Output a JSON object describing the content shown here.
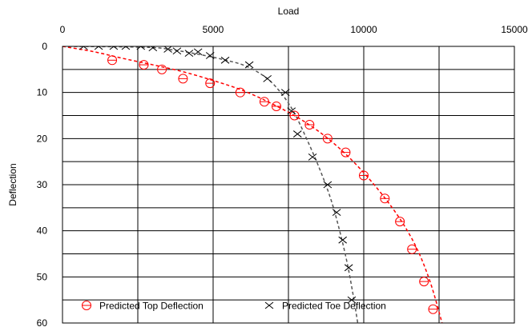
{
  "chart_data": {
    "type": "scatter",
    "title": "",
    "xlabel": "Load",
    "ylabel": "Deflection",
    "xlim": [
      0,
      15000
    ],
    "ylim": [
      0,
      60
    ],
    "y_inverted": true,
    "x_axis_position": "top",
    "x_ticks": [
      0,
      5000,
      10000,
      15000
    ],
    "y_ticks": [
      0,
      10,
      20,
      30,
      40,
      50,
      60
    ],
    "x_grid_step": 2500,
    "y_grid_step": 5,
    "grid": true,
    "legend_position": "bottom-inside",
    "series": [
      {
        "name": "Predicted Top Deflection",
        "color": "#ff0000",
        "line_style": "dashed",
        "marker": "circle-with-dash",
        "points": [
          [
            1650,
            3
          ],
          [
            2700,
            4
          ],
          [
            3300,
            5
          ],
          [
            4000,
            7
          ],
          [
            4900,
            8
          ],
          [
            5900,
            10
          ],
          [
            6700,
            12
          ],
          [
            7100,
            13
          ],
          [
            7700,
            15
          ],
          [
            8200,
            17
          ],
          [
            8800,
            20
          ],
          [
            9400,
            23
          ],
          [
            10000,
            28
          ],
          [
            10700,
            33
          ],
          [
            11200,
            38
          ],
          [
            11600,
            44
          ],
          [
            12000,
            51
          ],
          [
            12300,
            57
          ]
        ],
        "curve": [
          [
            0,
            0
          ],
          [
            1000,
            1.1
          ],
          [
            2000,
            2.6
          ],
          [
            3000,
            4.0
          ],
          [
            4000,
            5.5
          ],
          [
            5000,
            7.4
          ],
          [
            6000,
            9.6
          ],
          [
            7000,
            12.6
          ],
          [
            8000,
            16.2
          ],
          [
            9000,
            21.0
          ],
          [
            10000,
            27.4
          ],
          [
            11000,
            35.5
          ],
          [
            11700,
            43.0
          ],
          [
            12200,
            51.0
          ],
          [
            12600,
            60.0
          ]
        ]
      },
      {
        "name": "Predicted Toe Deflection",
        "color": "#000000",
        "curve_color": "#555555",
        "line_style": "dashed",
        "marker": "x",
        "points": [
          [
            700,
            0
          ],
          [
            1200,
            0
          ],
          [
            1700,
            0
          ],
          [
            2100,
            0
          ],
          [
            2600,
            0
          ],
          [
            3000,
            0.3
          ],
          [
            3500,
            0.6
          ],
          [
            3800,
            1
          ],
          [
            4200,
            1.5
          ],
          [
            4500,
            1.2
          ],
          [
            4900,
            2
          ],
          [
            5400,
            3
          ],
          [
            6200,
            4
          ],
          [
            6800,
            7
          ],
          [
            7400,
            10
          ],
          [
            7600,
            14
          ],
          [
            7800,
            19
          ],
          [
            8300,
            24
          ],
          [
            8800,
            30
          ],
          [
            9100,
            36
          ],
          [
            9300,
            42
          ],
          [
            9500,
            48
          ],
          [
            9600,
            55
          ]
        ],
        "curve": [
          [
            200,
            0
          ],
          [
            2800,
            0.2
          ],
          [
            3700,
            0.8
          ],
          [
            4500,
            1.7
          ],
          [
            5300,
            2.8
          ],
          [
            6100,
            4.3
          ],
          [
            6800,
            7.0
          ],
          [
            7300,
            10.5
          ],
          [
            7700,
            14.5
          ],
          [
            8100,
            20.0
          ],
          [
            8500,
            26.0
          ],
          [
            8900,
            33.0
          ],
          [
            9200,
            40.0
          ],
          [
            9450,
            47.0
          ],
          [
            9650,
            54.0
          ],
          [
            9800,
            60.0
          ]
        ]
      }
    ]
  }
}
